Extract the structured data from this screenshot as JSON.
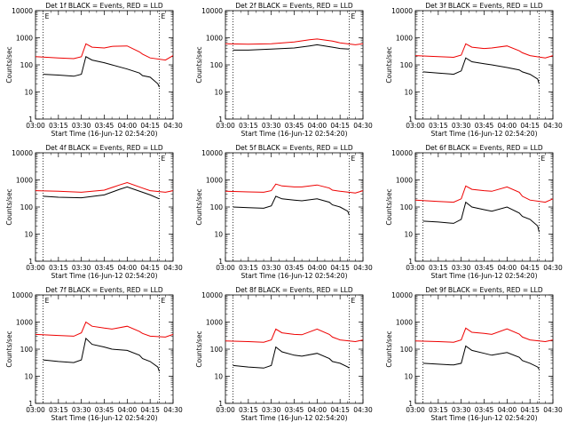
{
  "colors": {
    "events": "#000000",
    "lld": "#ee0000",
    "axis": "#000000"
  },
  "common": {
    "xlabel": "Start Time (16-Jun-12 02:54:20)",
    "ylabel": "Counts/sec",
    "xtick_labels": [
      "03:00",
      "03:15",
      "03:30",
      "03:45",
      "04:00",
      "04:15",
      "04:30"
    ],
    "ytick_labels": [
      "1",
      "10",
      "100",
      "1000",
      "10000"
    ]
  },
  "chart_data": [
    {
      "type": "line",
      "title": "Det 1f BLACK = Events, RED = LLD",
      "panel": "1f",
      "ylim": [
        1,
        10000
      ],
      "x_minutes_range": [
        "03:00",
        "04:30"
      ],
      "dotted_markers": [
        "03:05",
        "04:21"
      ],
      "corner_markers": [
        "E",
        "E"
      ],
      "series": [
        {
          "name": "Events",
          "x": [
            "03:05",
            "03:15",
            "03:25",
            "03:30",
            "03:33",
            "03:37",
            "03:45",
            "03:50",
            "04:00",
            "04:08",
            "04:10",
            "04:15",
            "04:20",
            "04:21"
          ],
          "values": [
            45,
            42,
            38,
            45,
            200,
            150,
            120,
            100,
            70,
            50,
            40,
            35,
            20,
            15
          ]
        },
        {
          "name": "LLD",
          "x": [
            "03:00",
            "03:15",
            "03:25",
            "03:30",
            "03:33",
            "03:37",
            "03:45",
            "03:50",
            "04:00",
            "04:08",
            "04:10",
            "04:15",
            "04:25",
            "04:30"
          ],
          "values": [
            200,
            180,
            170,
            200,
            600,
            450,
            420,
            480,
            500,
            300,
            250,
            180,
            150,
            220
          ]
        }
      ]
    },
    {
      "type": "line",
      "title": "Det 2f BLACK = Events, RED = LLD",
      "panel": "2f",
      "ylim": [
        1,
        10000
      ],
      "x_minutes_range": [
        "03:00",
        "04:30"
      ],
      "dotted_markers": [
        "03:05",
        "04:21"
      ],
      "corner_markers": [
        "",
        "E"
      ],
      "series": [
        {
          "name": "Events",
          "x": [
            "03:05",
            "03:15",
            "03:30",
            "03:45",
            "03:55",
            "04:00",
            "04:10",
            "04:15",
            "04:21"
          ],
          "values": [
            350,
            350,
            380,
            420,
            500,
            550,
            450,
            400,
            380
          ]
        },
        {
          "name": "LLD",
          "x": [
            "03:00",
            "03:15",
            "03:30",
            "03:45",
            "03:55",
            "04:00",
            "04:10",
            "04:15",
            "04:25",
            "04:30"
          ],
          "values": [
            600,
            580,
            600,
            700,
            850,
            900,
            750,
            650,
            550,
            600
          ]
        }
      ]
    },
    {
      "type": "line",
      "title": "Det 3f BLACK = Events, RED = LLD",
      "panel": "3f",
      "ylim": [
        1,
        10000
      ],
      "x_minutes_range": [
        "03:00",
        "04:30"
      ],
      "dotted_markers": [
        "03:05",
        "04:21"
      ],
      "corner_markers": [
        "",
        ""
      ],
      "series": [
        {
          "name": "Events",
          "x": [
            "03:05",
            "03:15",
            "03:25",
            "03:30",
            "03:33",
            "03:37",
            "03:45",
            "03:50",
            "04:00",
            "04:08",
            "04:10",
            "04:15",
            "04:20",
            "04:21"
          ],
          "values": [
            55,
            50,
            45,
            60,
            180,
            130,
            110,
            100,
            80,
            65,
            55,
            45,
            30,
            20
          ]
        },
        {
          "name": "LLD",
          "x": [
            "03:00",
            "03:15",
            "03:25",
            "03:30",
            "03:33",
            "03:37",
            "03:45",
            "03:50",
            "04:00",
            "04:08",
            "04:10",
            "04:15",
            "04:25",
            "04:30"
          ],
          "values": [
            220,
            200,
            190,
            230,
            600,
            450,
            400,
            420,
            500,
            330,
            280,
            220,
            180,
            220
          ]
        }
      ]
    },
    {
      "type": "line",
      "title": "Det 4f BLACK = Events, RED = LLD",
      "panel": "4f",
      "ylim": [
        1,
        10000
      ],
      "x_minutes_range": [
        "03:00",
        "04:30"
      ],
      "dotted_markers": [
        "03:05",
        "04:21"
      ],
      "corner_markers": [
        "",
        "E"
      ],
      "series": [
        {
          "name": "Events",
          "x": [
            "03:05",
            "03:15",
            "03:30",
            "03:45",
            "03:55",
            "04:00",
            "04:10",
            "04:15",
            "04:21"
          ],
          "values": [
            250,
            230,
            220,
            280,
            450,
            550,
            350,
            280,
            200
          ]
        },
        {
          "name": "LLD",
          "x": [
            "03:00",
            "03:15",
            "03:30",
            "03:45",
            "03:55",
            "04:00",
            "04:10",
            "04:15",
            "04:25",
            "04:30"
          ],
          "values": [
            400,
            380,
            350,
            420,
            650,
            800,
            500,
            400,
            350,
            400
          ]
        }
      ]
    },
    {
      "type": "line",
      "title": "Det 5f BLACK = Events, RED = LLD",
      "panel": "5f",
      "ylim": [
        1,
        10000
      ],
      "x_minutes_range": [
        "03:00",
        "04:30"
      ],
      "dotted_markers": [
        "03:05",
        "04:21"
      ],
      "corner_markers": [
        "",
        "E"
      ],
      "series": [
        {
          "name": "Events",
          "x": [
            "03:05",
            "03:15",
            "03:25",
            "03:30",
            "03:33",
            "03:37",
            "03:45",
            "03:50",
            "04:00",
            "04:08",
            "04:10",
            "04:15",
            "04:20",
            "04:21"
          ],
          "values": [
            100,
            95,
            90,
            110,
            250,
            200,
            180,
            170,
            200,
            150,
            120,
            100,
            70,
            50
          ]
        },
        {
          "name": "LLD",
          "x": [
            "03:00",
            "03:15",
            "03:25",
            "03:30",
            "03:33",
            "03:37",
            "03:45",
            "03:50",
            "04:00",
            "04:08",
            "04:10",
            "04:15",
            "04:25",
            "04:30"
          ],
          "values": [
            380,
            360,
            350,
            400,
            700,
            600,
            550,
            550,
            650,
            500,
            420,
            380,
            330,
            400
          ]
        }
      ]
    },
    {
      "type": "line",
      "title": "Det 6f BLACK = Events, RED = LLD",
      "panel": "6f",
      "ylim": [
        1,
        10000
      ],
      "x_minutes_range": [
        "03:00",
        "04:30"
      ],
      "dotted_markers": [
        "03:05",
        "04:21"
      ],
      "corner_markers": [
        "",
        "E"
      ],
      "series": [
        {
          "name": "Events",
          "x": [
            "03:05",
            "03:15",
            "03:25",
            "03:30",
            "03:33",
            "03:37",
            "03:45",
            "03:50",
            "04:00",
            "04:08",
            "04:10",
            "04:15",
            "04:20",
            "04:21"
          ],
          "values": [
            30,
            28,
            25,
            35,
            150,
            100,
            80,
            70,
            100,
            60,
            45,
            35,
            20,
            12
          ]
        },
        {
          "name": "LLD",
          "x": [
            "03:00",
            "03:15",
            "03:25",
            "03:30",
            "03:33",
            "03:37",
            "03:45",
            "03:50",
            "04:00",
            "04:08",
            "04:10",
            "04:15",
            "04:25",
            "04:30"
          ],
          "values": [
            180,
            160,
            150,
            200,
            600,
            450,
            400,
            380,
            550,
            350,
            250,
            180,
            150,
            200
          ]
        }
      ]
    },
    {
      "type": "line",
      "title": "Det 7f BLACK = Events, RED = LLD",
      "panel": "7f",
      "ylim": [
        1,
        10000
      ],
      "x_minutes_range": [
        "03:00",
        "04:30"
      ],
      "dotted_markers": [
        "03:05",
        "04:21"
      ],
      "corner_markers": [
        "E",
        "E"
      ],
      "series": [
        {
          "name": "Events",
          "x": [
            "03:05",
            "03:15",
            "03:25",
            "03:30",
            "03:33",
            "03:37",
            "03:45",
            "03:50",
            "04:00",
            "04:08",
            "04:10",
            "04:15",
            "04:20",
            "04:21"
          ],
          "values": [
            40,
            35,
            32,
            40,
            250,
            150,
            120,
            100,
            90,
            60,
            45,
            35,
            22,
            15
          ]
        },
        {
          "name": "LLD",
          "x": [
            "03:00",
            "03:15",
            "03:25",
            "03:30",
            "03:33",
            "03:37",
            "03:45",
            "03:50",
            "04:00",
            "04:08",
            "04:10",
            "04:15",
            "04:25",
            "04:30"
          ],
          "values": [
            350,
            320,
            300,
            400,
            1000,
            700,
            600,
            550,
            700,
            450,
            380,
            300,
            280,
            350
          ]
        }
      ]
    },
    {
      "type": "line",
      "title": "Det 8f BLACK = Events, RED = LLD",
      "panel": "8f",
      "ylim": [
        1,
        10000
      ],
      "x_minutes_range": [
        "03:00",
        "04:30"
      ],
      "dotted_markers": [
        "03:05",
        "04:21"
      ],
      "corner_markers": [
        "",
        "E"
      ],
      "series": [
        {
          "name": "Events",
          "x": [
            "03:05",
            "03:15",
            "03:25",
            "03:30",
            "03:33",
            "03:37",
            "03:45",
            "03:50",
            "04:00",
            "04:08",
            "04:10",
            "04:15",
            "04:20",
            "04:21"
          ],
          "values": [
            25,
            22,
            20,
            25,
            120,
            80,
            60,
            55,
            70,
            45,
            35,
            30,
            22,
            20
          ]
        },
        {
          "name": "LLD",
          "x": [
            "03:00",
            "03:15",
            "03:25",
            "03:30",
            "03:33",
            "03:37",
            "03:45",
            "03:50",
            "04:00",
            "04:08",
            "04:10",
            "04:15",
            "04:25",
            "04:30"
          ],
          "values": [
            200,
            190,
            180,
            220,
            550,
            400,
            350,
            340,
            550,
            350,
            280,
            220,
            190,
            220
          ]
        }
      ]
    },
    {
      "type": "line",
      "title": "Det 9f BLACK = Events, RED = LLD",
      "panel": "9f",
      "ylim": [
        1,
        10000
      ],
      "x_minutes_range": [
        "03:00",
        "04:30"
      ],
      "dotted_markers": [
        "03:05",
        "04:21"
      ],
      "corner_markers": [
        "",
        ""
      ],
      "series": [
        {
          "name": "Events",
          "x": [
            "03:05",
            "03:15",
            "03:25",
            "03:30",
            "03:33",
            "03:37",
            "03:45",
            "03:50",
            "04:00",
            "04:08",
            "04:10",
            "04:15",
            "04:20",
            "04:21"
          ],
          "values": [
            30,
            28,
            26,
            30,
            130,
            90,
            70,
            60,
            75,
            50,
            38,
            30,
            22,
            18
          ]
        },
        {
          "name": "LLD",
          "x": [
            "03:00",
            "03:15",
            "03:25",
            "03:30",
            "03:33",
            "03:37",
            "03:45",
            "03:50",
            "04:00",
            "04:08",
            "04:10",
            "04:15",
            "04:25",
            "04:30"
          ],
          "values": [
            200,
            190,
            180,
            220,
            600,
            420,
            380,
            350,
            560,
            360,
            280,
            220,
            190,
            220
          ]
        }
      ]
    }
  ]
}
